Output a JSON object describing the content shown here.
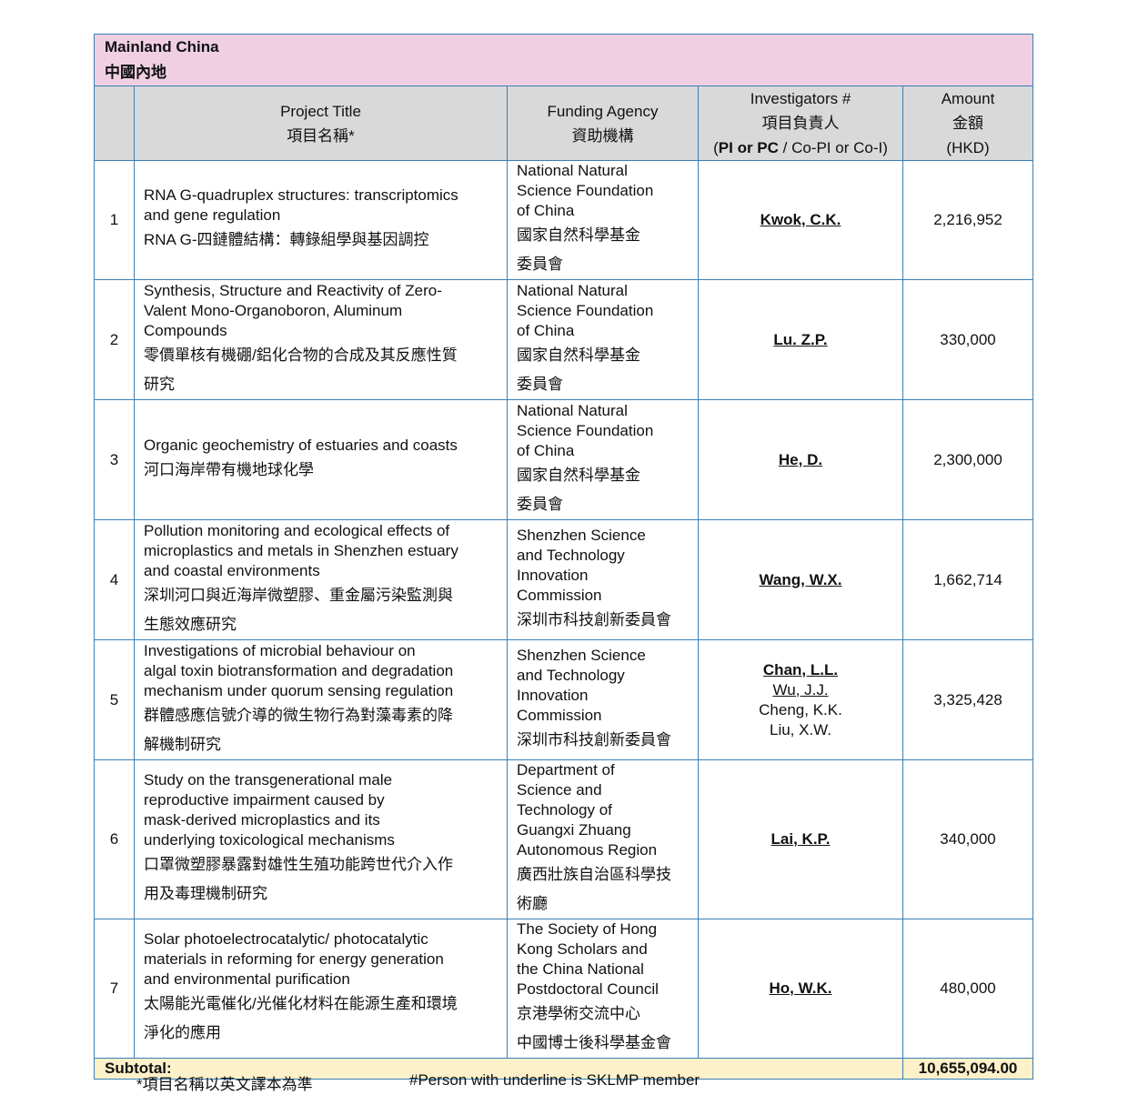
{
  "region": {
    "en": "Mainland China",
    "zh": "中國內地"
  },
  "headers": {
    "title": [
      "Project Title",
      "項目名稱*"
    ],
    "agency": [
      "Funding Agency",
      "資助機構"
    ],
    "investigators": [
      "Investigators #",
      "項目負責人"
    ],
    "investigators_role_bold": "PI or PC",
    "investigators_role_rest": " / Co-PI or Co-I",
    "amount": [
      "Amount",
      "金額",
      "(HKD)"
    ]
  },
  "rows": [
    {
      "num": "1",
      "height": 131,
      "title_en": [
        "RNA G-quadruplex structures: transcriptomics",
        "and gene regulation"
      ],
      "title_zh": [
        "RNA G-四鏈體結構：轉錄組學與基因調控"
      ],
      "agency_en": [
        "National Natural",
        "Science Foundation",
        "of China"
      ],
      "agency_zh": [
        "國家自然科學基金",
        "委員會"
      ],
      "investigators": [
        {
          "name": "Kwok, C.K.",
          "u": true,
          "b": true
        }
      ],
      "amount": "2,216,952"
    },
    {
      "num": "2",
      "height": 132,
      "title_en": [
        "Synthesis, Structure and Reactivity of Zero-",
        "Valent Mono-Organoboron, Aluminum",
        "Compounds"
      ],
      "title_zh": [
        "零價單核有機硼/鋁化合物的合成及其反應性質",
        "研究"
      ],
      "agency_en": [
        "National Natural",
        "Science Foundation",
        "of China"
      ],
      "agency_zh": [
        "國家自然科學基金",
        "委員會"
      ],
      "investigators": [
        {
          "name": "Lu. Z.P.",
          "u": true,
          "b": true
        }
      ],
      "amount": "330,000"
    },
    {
      "num": "3",
      "height": 132,
      "title_en": [
        "Organic geochemistry of estuaries and coasts"
      ],
      "title_zh": [
        "河口海岸帶有機地球化學"
      ],
      "agency_en": [
        "National Natural",
        "Science Foundation",
        "of China"
      ],
      "agency_zh": [
        "國家自然科學基金",
        "委員會"
      ],
      "investigators": [
        {
          "name": "He, D.",
          "u": true,
          "b": true
        }
      ],
      "amount": "2,300,000"
    },
    {
      "num": "4",
      "height": 132,
      "title_en": [
        "Pollution monitoring and ecological effects of",
        "microplastics and metals in Shenzhen estuary",
        "and coastal environments"
      ],
      "title_zh": [
        "深圳河口與近海岸微塑膠、重金屬污染監測與",
        "生態效應研究"
      ],
      "agency_en": [
        "Shenzhen Science",
        "and Technology",
        "Innovation",
        "Commission"
      ],
      "agency_zh": [
        "深圳市科技創新委員會"
      ],
      "investigators": [
        {
          "name": "Wang, W.X.",
          "u": true,
          "b": true
        }
      ],
      "amount": "1,662,714"
    },
    {
      "num": "5",
      "height": 132,
      "title_en": [
        "Investigations of microbial behaviour on",
        "algal toxin biotransformation and degradation",
        "mechanism under quorum sensing regulation"
      ],
      "title_zh": [
        "群體感應信號介導的微生物行為對藻毒素的降",
        "解機制研究"
      ],
      "agency_en": [
        "Shenzhen Science",
        "and Technology",
        "Innovation",
        "Commission"
      ],
      "agency_zh": [
        "深圳市科技創新委員會"
      ],
      "investigators": [
        {
          "name": "Chan, L.L.",
          "u": true,
          "b": true
        },
        {
          "name": "Wu, J.J.",
          "u": true,
          "b": false
        },
        {
          "name": "Cheng, K.K.",
          "u": false,
          "b": false
        },
        {
          "name": "Liu, X.W.",
          "u": false,
          "b": false
        }
      ],
      "amount": "3,325,428"
    },
    {
      "num": "6",
      "height": 162,
      "title_en": [
        "Study on the transgenerational male",
        "reproductive impairment caused by",
        "mask-derived microplastics and its",
        "underlying toxicological mechanisms"
      ],
      "title_zh": [
        "口罩微塑膠暴露對雄性生殖功能跨世代介入作",
        "用及毒理機制研究"
      ],
      "agency_en": [
        "Department of",
        "Science and",
        "Technology of",
        "Guangxi Zhuang",
        "Autonomous Region"
      ],
      "agency_zh": [
        "廣西壯族自治區科學技",
        "術廳"
      ],
      "investigators": [
        {
          "name": "Lai, K.P.",
          "u": true,
          "b": true
        }
      ],
      "amount": "340,000"
    },
    {
      "num": "7",
      "height": 140,
      "title_en": [
        "Solar photoelectrocatalytic/ photocatalytic",
        "materials in reforming for energy generation",
        "and environmental purification"
      ],
      "title_zh": [
        "太陽能光電催化/光催化材料在能源生產和環境",
        "淨化的應用"
      ],
      "agency_en": [
        "The Society of Hong",
        "Kong Scholars and",
        "the China National",
        "Postdoctoral Council"
      ],
      "agency_zh": [
        "京港學術交流中心",
        "中國博士後科學基金會"
      ],
      "investigators": [
        {
          "name": "Ho, W.K.",
          "u": true,
          "b": true
        }
      ],
      "amount": "480,000"
    }
  ],
  "subtotal": {
    "label": "Subtotal:",
    "value": "10,655,094.00"
  },
  "footnotes": {
    "left": "*項目名稱以英文譯本為準",
    "right": "#Person with underline is SKLMP member"
  }
}
